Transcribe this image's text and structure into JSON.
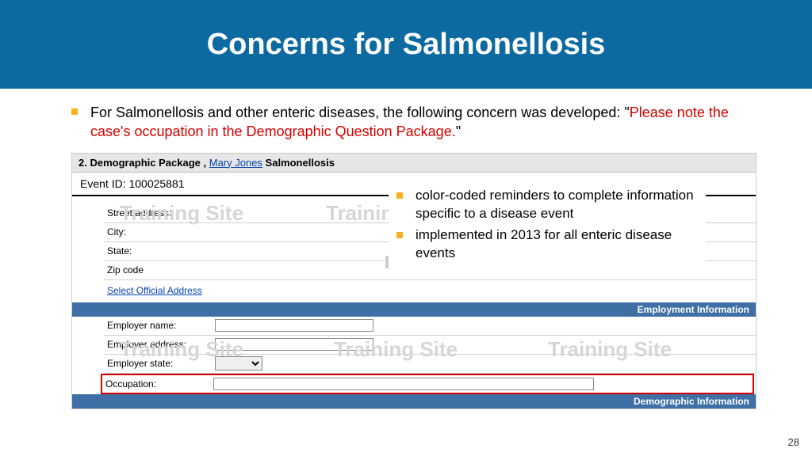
{
  "header": {
    "title": "Concerns for Salmonellosis"
  },
  "main_bullet": {
    "lead": "For Salmonellosis and other enteric diseases, the following concern was developed: \"",
    "red": "Please note the case's occupation in the Demographic Question Package.",
    "tail": "\""
  },
  "overlay": {
    "b1": "color-coded reminders to complete information specific to a disease event",
    "b2": "implemented in 2013 for all enteric disease events"
  },
  "pkg": {
    "num": "2. Demographic Package , ",
    "name_link": "Mary Jones",
    "disease": " Salmonellosis",
    "event_id": "Event ID: 100025881"
  },
  "fields": {
    "street": "Street address:",
    "city": "City:",
    "state": "State:",
    "zip": "Zip code",
    "select_addr": "Select Official Address"
  },
  "sections": {
    "emp": "Employment Information",
    "demo": "Demographic Information"
  },
  "emp": {
    "name": "Employer name:",
    "addr": "Employer address:",
    "state": "Employer state:",
    "occ": "Occupation:"
  },
  "watermark": "Training Site",
  "page": "28"
}
